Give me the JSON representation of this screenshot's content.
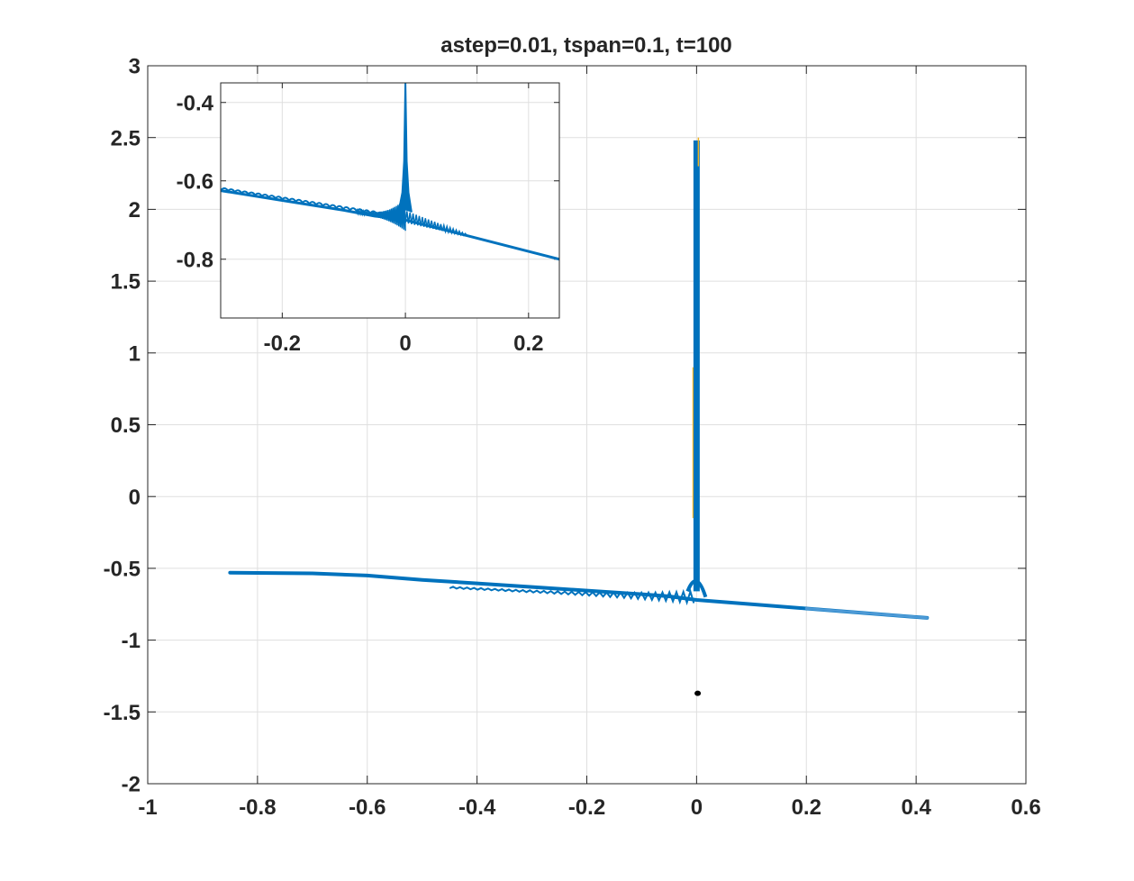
{
  "chart_data": [
    {
      "type": "line",
      "title": "astep=0.01, tspan=0.1, t=100",
      "xlabel": "",
      "ylabel": "",
      "xlim": [
        -1,
        0.6
      ],
      "ylim": [
        -2,
        3
      ],
      "xticks": [
        -1,
        -0.8,
        -0.6,
        -0.4,
        -0.2,
        0,
        0.2,
        0.4,
        0.6
      ],
      "yticks": [
        -2,
        -1.5,
        -1,
        -0.5,
        0,
        0.5,
        1,
        1.5,
        2,
        2.5,
        3
      ],
      "xtick_labels": [
        "-1",
        "-0.8",
        "-0.6",
        "-0.4",
        "-0.2",
        "0",
        "0.2",
        "0.4",
        "0.6"
      ],
      "ytick_labels": [
        "-2",
        "-1.5",
        "-1",
        "-0.5",
        "0",
        "0.5",
        "1",
        "1.5",
        "2",
        "2.5",
        "3"
      ],
      "grid": true,
      "box": true,
      "colors": {
        "series": "#0072bd",
        "series_light": "#4d9ad6",
        "spike_highlight": "#edb120",
        "marker": "#000000"
      },
      "series": [
        {
          "x": [
            -0.85,
            -0.7,
            -0.6,
            -0.5,
            -0.4,
            -0.3,
            -0.2,
            -0.1,
            -0.05,
            0,
            0.1,
            0.2,
            0.3,
            0.42
          ],
          "y": [
            -0.53,
            -0.535,
            -0.55,
            -0.58,
            -0.605,
            -0.63,
            -0.655,
            -0.68,
            -0.695,
            -0.72,
            -0.75,
            -0.78,
            -0.81,
            -0.845
          ]
        },
        {
          "x": [
            0,
            0.001,
            0.002,
            0.003
          ],
          "y": [
            -0.66,
            2.5,
            2.45,
            -0.7
          ]
        },
        {
          "x": [
            0.002
          ],
          "y": [
            -1.37
          ]
        }
      ]
    },
    {
      "type": "line",
      "title": "",
      "xlim": [
        -0.3,
        0.25
      ],
      "ylim": [
        -0.95,
        -0.35
      ],
      "xticks": [
        -0.2,
        0,
        0.2
      ],
      "yticks": [
        -0.4,
        -0.6,
        -0.8
      ],
      "xtick_labels": [
        "-0.2",
        "0",
        "0.2"
      ],
      "ytick_labels": [
        "-0.4",
        "-0.6",
        "-0.8"
      ],
      "grid": true,
      "box": true,
      "series": [
        {
          "x": [
            -0.3,
            -0.2,
            -0.1,
            -0.05,
            -0.02,
            0,
            0.1,
            0.2,
            0.25
          ],
          "y": [
            -0.625,
            -0.65,
            -0.675,
            -0.69,
            -0.695,
            -0.7,
            -0.74,
            -0.78,
            -0.8
          ]
        },
        {
          "x": [
            -0.01,
            -0.005,
            -0.002,
            0,
            0.002,
            0.005,
            0.01
          ],
          "y": [
            -0.67,
            -0.63,
            -0.55,
            -0.35,
            -0.55,
            -0.63,
            -0.68
          ]
        }
      ]
    }
  ]
}
